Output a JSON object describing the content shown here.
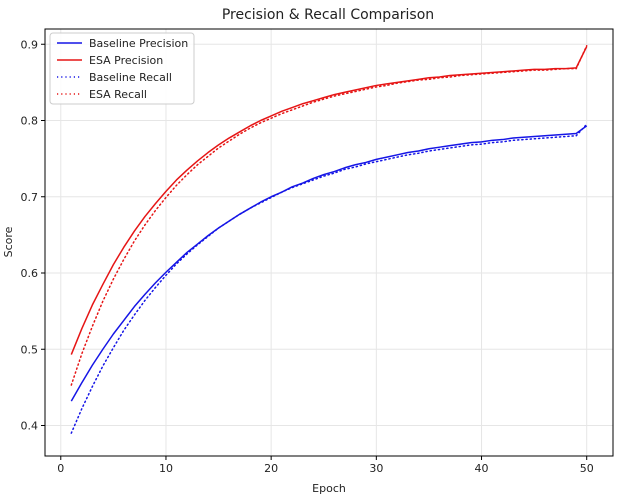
{
  "chart_data": {
    "type": "line",
    "title": "Precision & Recall Comparison",
    "xlabel": "Epoch",
    "ylabel": "Score",
    "xlim": [
      -1.5,
      52.5
    ],
    "ylim": [
      0.36,
      0.92
    ],
    "xticks": [
      0,
      10,
      20,
      30,
      40,
      50
    ],
    "yticks": [
      0.4,
      0.5,
      0.6,
      0.7,
      0.8,
      0.9
    ],
    "grid": true,
    "legend_position": "top-left",
    "x": [
      1,
      2,
      3,
      4,
      5,
      6,
      7,
      8,
      9,
      10,
      11,
      12,
      13,
      14,
      15,
      16,
      17,
      18,
      19,
      20,
      21,
      22,
      23,
      24,
      25,
      26,
      27,
      28,
      29,
      30,
      31,
      32,
      33,
      34,
      35,
      36,
      37,
      38,
      39,
      40,
      41,
      42,
      43,
      44,
      45,
      46,
      47,
      48,
      49,
      50
    ],
    "series": [
      {
        "name": "Baseline Precision",
        "color": "#1515e6",
        "style": "solid",
        "values": [
          0.432,
          0.456,
          0.479,
          0.5,
          0.52,
          0.538,
          0.556,
          0.572,
          0.587,
          0.601,
          0.614,
          0.627,
          0.638,
          0.649,
          0.659,
          0.668,
          0.677,
          0.685,
          0.693,
          0.7,
          0.706,
          0.713,
          0.718,
          0.724,
          0.729,
          0.733,
          0.738,
          0.742,
          0.745,
          0.749,
          0.752,
          0.755,
          0.758,
          0.76,
          0.763,
          0.765,
          0.767,
          0.769,
          0.771,
          0.772,
          0.774,
          0.775,
          0.777,
          0.778,
          0.779,
          0.78,
          0.781,
          0.782,
          0.783,
          0.793
        ]
      },
      {
        "name": "ESA Precision",
        "color": "#e61515",
        "style": "solid",
        "values": [
          0.493,
          0.527,
          0.558,
          0.585,
          0.611,
          0.634,
          0.655,
          0.674,
          0.691,
          0.707,
          0.722,
          0.735,
          0.747,
          0.758,
          0.768,
          0.777,
          0.785,
          0.793,
          0.8,
          0.806,
          0.812,
          0.817,
          0.822,
          0.826,
          0.83,
          0.834,
          0.837,
          0.84,
          0.843,
          0.846,
          0.848,
          0.85,
          0.852,
          0.854,
          0.856,
          0.857,
          0.859,
          0.86,
          0.861,
          0.862,
          0.863,
          0.864,
          0.865,
          0.866,
          0.867,
          0.867,
          0.868,
          0.868,
          0.869,
          0.897
        ]
      },
      {
        "name": "Baseline Recall",
        "color": "#1515e6",
        "style": "dotted",
        "values": [
          0.39,
          0.422,
          0.451,
          0.478,
          0.502,
          0.525,
          0.545,
          0.564,
          0.581,
          0.597,
          0.612,
          0.625,
          0.637,
          0.648,
          0.659,
          0.668,
          0.677,
          0.685,
          0.692,
          0.699,
          0.706,
          0.712,
          0.717,
          0.722,
          0.727,
          0.731,
          0.736,
          0.739,
          0.743,
          0.746,
          0.749,
          0.752,
          0.755,
          0.757,
          0.76,
          0.762,
          0.764,
          0.766,
          0.768,
          0.769,
          0.771,
          0.772,
          0.774,
          0.775,
          0.776,
          0.777,
          0.778,
          0.779,
          0.78,
          0.795
        ]
      },
      {
        "name": "ESA Recall",
        "color": "#e61515",
        "style": "dotted",
        "values": [
          0.453,
          0.494,
          0.53,
          0.563,
          0.592,
          0.618,
          0.642,
          0.663,
          0.682,
          0.699,
          0.715,
          0.729,
          0.742,
          0.753,
          0.764,
          0.773,
          0.782,
          0.79,
          0.797,
          0.803,
          0.809,
          0.814,
          0.819,
          0.824,
          0.828,
          0.832,
          0.835,
          0.838,
          0.841,
          0.844,
          0.846,
          0.849,
          0.851,
          0.853,
          0.854,
          0.856,
          0.857,
          0.859,
          0.86,
          0.861,
          0.862,
          0.863,
          0.864,
          0.865,
          0.866,
          0.866,
          0.867,
          0.868,
          0.868,
          0.898
        ]
      }
    ]
  }
}
